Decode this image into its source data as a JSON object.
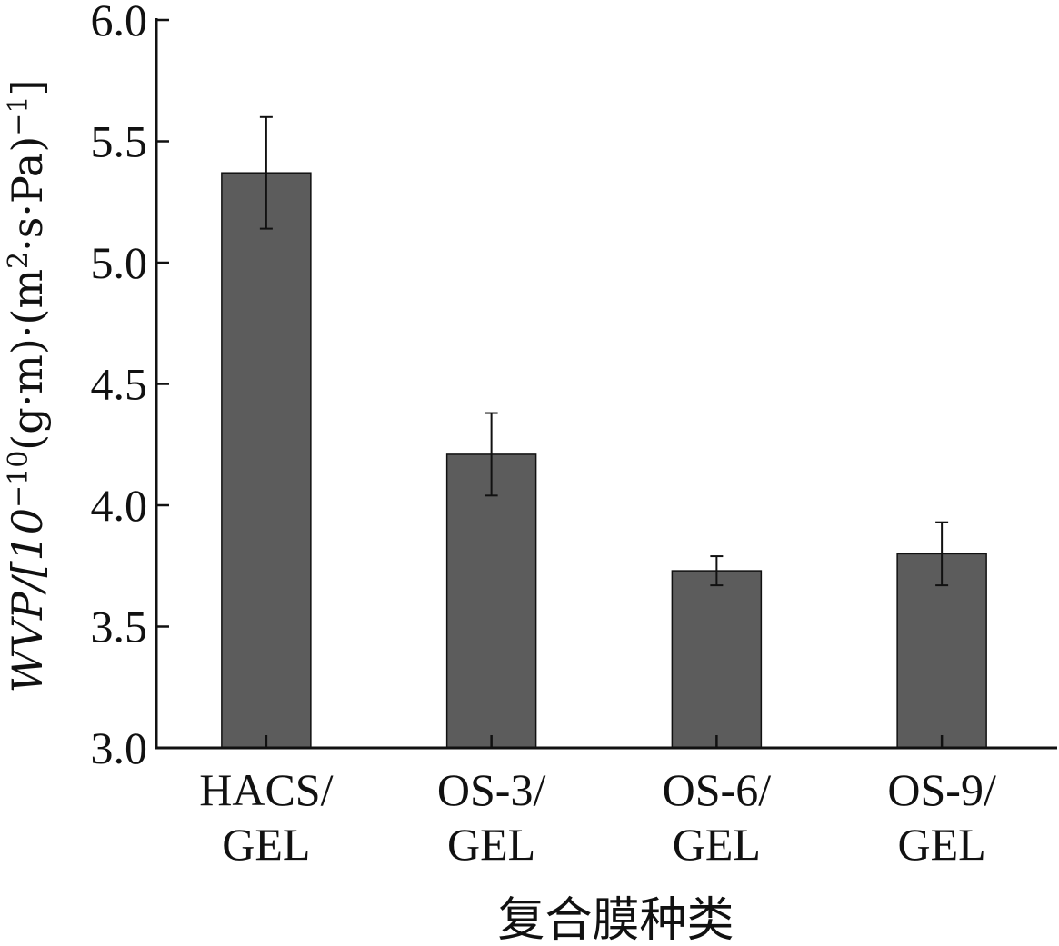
{
  "chart_data": {
    "type": "bar",
    "categories": [
      [
        "HACS/",
        "GEL"
      ],
      [
        "OS-3/",
        "GEL"
      ],
      [
        "OS-6/",
        "GEL"
      ],
      [
        "OS-9/",
        "GEL"
      ]
    ],
    "values": [
      5.37,
      4.21,
      3.73,
      3.8
    ],
    "errors": [
      0.23,
      0.17,
      0.06,
      0.13
    ],
    "ylim": [
      3.0,
      6.0
    ],
    "yticks": [
      "3.0",
      "3.5",
      "4.0",
      "4.5",
      "5.0",
      "5.5",
      "6.0"
    ],
    "xlabel": "复合膜种类",
    "ylabel": {
      "main": "WVP/[10",
      "exp1": "−10",
      "mid": "(g·m)·(m",
      "exp2": "2",
      "tail": "·s·Pa)",
      "exp3": "−1",
      "end": "]"
    },
    "bar_color": "#5c5c5c",
    "grid": false
  }
}
